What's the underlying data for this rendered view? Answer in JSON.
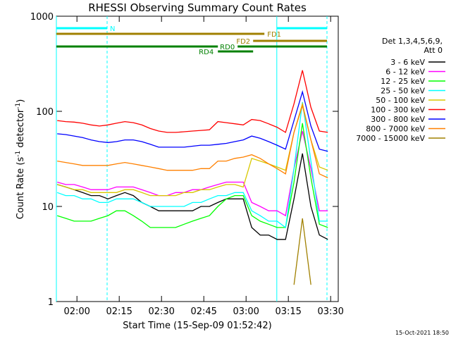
{
  "chart_data": {
    "type": "line",
    "title": "RHESSI Observing Summary Count Rates",
    "xlabel": "Start Time (15-Sep-09 01:52:42)",
    "ylabel_parts": [
      "Count Rate (s",
      "-1",
      " detector",
      "-1",
      ")"
    ],
    "legend_header": [
      "Det 1,3,4,5,6,9,",
      "Att 0"
    ],
    "stamp": "15-Oct-2021 18:50",
    "log_y": true,
    "xlim": [
      112.7,
      212.7
    ],
    "xticks": [
      {
        "value": 120,
        "label": "02:00"
      },
      {
        "value": 135,
        "label": "02:15"
      },
      {
        "value": 150,
        "label": "02:30"
      },
      {
        "value": 165,
        "label": "02:45"
      },
      {
        "value": 180,
        "label": "03:00"
      },
      {
        "value": 195,
        "label": "03:15"
      },
      {
        "value": 210,
        "label": "03:30"
      }
    ],
    "ylim": [
      1,
      1000
    ],
    "yticks": [
      1,
      10,
      100,
      1000
    ],
    "x": [
      113,
      116,
      119,
      122,
      125,
      128,
      131,
      134,
      137,
      140,
      143,
      146,
      149,
      152,
      155,
      158,
      161,
      164,
      167,
      170,
      173,
      176,
      179,
      182,
      185,
      188,
      191,
      194,
      197,
      200,
      203,
      206,
      209
    ],
    "series": [
      {
        "name": "3 - 6 keV",
        "color": "#000000",
        "values": [
          17,
          16,
          15,
          14,
          13,
          13,
          12,
          13,
          14,
          13,
          11,
          10,
          9,
          9,
          9,
          9,
          9,
          10,
          10,
          11,
          12,
          12,
          12,
          6,
          5,
          5,
          4.5,
          4.5,
          12,
          36,
          10,
          5,
          4.5
        ]
      },
      {
        "name": "6 - 12 keV",
        "color": "#ff00ff",
        "values": [
          18,
          17,
          17,
          16,
          15,
          15,
          15,
          16,
          16,
          16,
          15,
          14,
          13,
          13,
          14,
          14,
          15,
          15,
          16,
          17,
          18,
          18,
          18,
          11,
          10,
          9,
          9,
          8,
          25,
          62,
          25,
          9,
          9
        ]
      },
      {
        "name": "12 - 25 keV",
        "color": "#00ff00",
        "values": [
          8,
          7.5,
          7,
          7,
          7,
          7.5,
          8,
          9,
          9,
          8,
          7,
          6,
          6,
          6,
          6,
          6.5,
          7,
          7.5,
          8,
          10,
          12,
          13,
          13,
          8,
          7,
          6.5,
          6,
          6,
          18,
          75,
          20,
          6.5,
          6
        ]
      },
      {
        "name": "25 - 50 keV",
        "color": "#00ffff",
        "values": [
          14,
          13,
          13,
          12,
          12,
          11,
          11,
          12,
          12,
          12,
          11,
          10,
          10,
          10,
          10,
          10,
          11,
          11,
          12,
          13,
          13,
          14,
          14,
          9,
          8,
          7,
          7,
          6,
          25,
          125,
          30,
          7,
          7
        ]
      },
      {
        "name": "50 - 100 keV",
        "color": "#d8c800",
        "values": [
          17,
          16,
          15,
          15,
          14,
          14,
          14,
          14,
          15,
          15,
          14,
          13,
          13,
          13,
          13,
          14,
          14,
          15,
          15,
          16,
          17,
          17,
          16,
          32,
          30,
          28,
          26,
          24,
          60,
          120,
          50,
          26,
          24
        ]
      },
      {
        "name": "100 - 300 keV",
        "color": "#ff0000",
        "values": [
          80,
          78,
          77,
          75,
          72,
          70,
          72,
          75,
          78,
          76,
          72,
          66,
          62,
          60,
          60,
          61,
          62,
          63,
          64,
          78,
          76,
          74,
          72,
          82,
          80,
          74,
          68,
          60,
          120,
          270,
          110,
          62,
          60
        ]
      },
      {
        "name": "300 - 800 keV",
        "color": "#0000ff",
        "values": [
          58,
          57,
          55,
          53,
          50,
          48,
          47,
          48,
          50,
          50,
          48,
          45,
          42,
          42,
          42,
          42,
          43,
          44,
          44,
          45,
          46,
          48,
          50,
          55,
          52,
          48,
          44,
          40,
          80,
          160,
          70,
          40,
          38
        ]
      },
      {
        "name": "800 - 7000 keV",
        "color": "#ff8000",
        "values": [
          30,
          29,
          28,
          27,
          27,
          27,
          27,
          28,
          29,
          28,
          27,
          26,
          25,
          24,
          24,
          24,
          24,
          25,
          25,
          30,
          30,
          32,
          33,
          35,
          32,
          28,
          25,
          22,
          60,
          115,
          50,
          22,
          20
        ]
      },
      {
        "name": "7000 - 15000 keV",
        "color": "#a08000",
        "values": [
          null,
          null,
          null,
          null,
          null,
          null,
          null,
          null,
          null,
          null,
          null,
          null,
          null,
          null,
          null,
          null,
          null,
          null,
          null,
          null,
          null,
          null,
          null,
          null,
          null,
          null,
          null,
          null,
          1.5,
          7.5,
          1.5,
          null,
          null
        ]
      }
    ],
    "periods": [
      {
        "label": "N",
        "color": "#00ffff",
        "start": 112.7,
        "end": 130.7
      },
      {
        "label": null,
        "color": "#00ffff",
        "start": 190.9,
        "end": 208.7
      },
      {
        "label": "FD1",
        "color": "#a08000",
        "start": 112.7,
        "end": 186.5
      },
      {
        "label": "FD2",
        "color": "#a08000",
        "start": 182.5,
        "end": 208.7
      },
      {
        "label": null,
        "color": "#008000",
        "start": 112.7,
        "end": 170
      },
      {
        "label": "RD4",
        "color": "#008000",
        "start": 170,
        "end": 182.5
      },
      {
        "label": "RD0",
        "color": "#008000",
        "start": 177,
        "end": 208.7
      }
    ]
  }
}
